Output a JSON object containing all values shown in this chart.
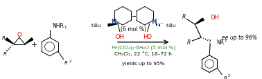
{
  "bg_color": "#ffffff",
  "fig_width": 3.78,
  "fig_height": 1.15,
  "dpi": 100,
  "reagent_fe": "Fe(ClO₄)₂·6H₂O (5 mol %)",
  "reagent_solvent": "CH₂Cl₂, 22 °C, 16–72 h",
  "reagent_yield": "yields up to 95%",
  "catalyst_label": "(6 mol %)",
  "ee_label": "ee up to 96%",
  "fe_color": "#2e8b2e",
  "OH_color": "#cc0000",
  "N_color": "#1a4fa0",
  "black": "#000000",
  "tbu_left": "t-Bu",
  "tbu_right": "t-Bu"
}
